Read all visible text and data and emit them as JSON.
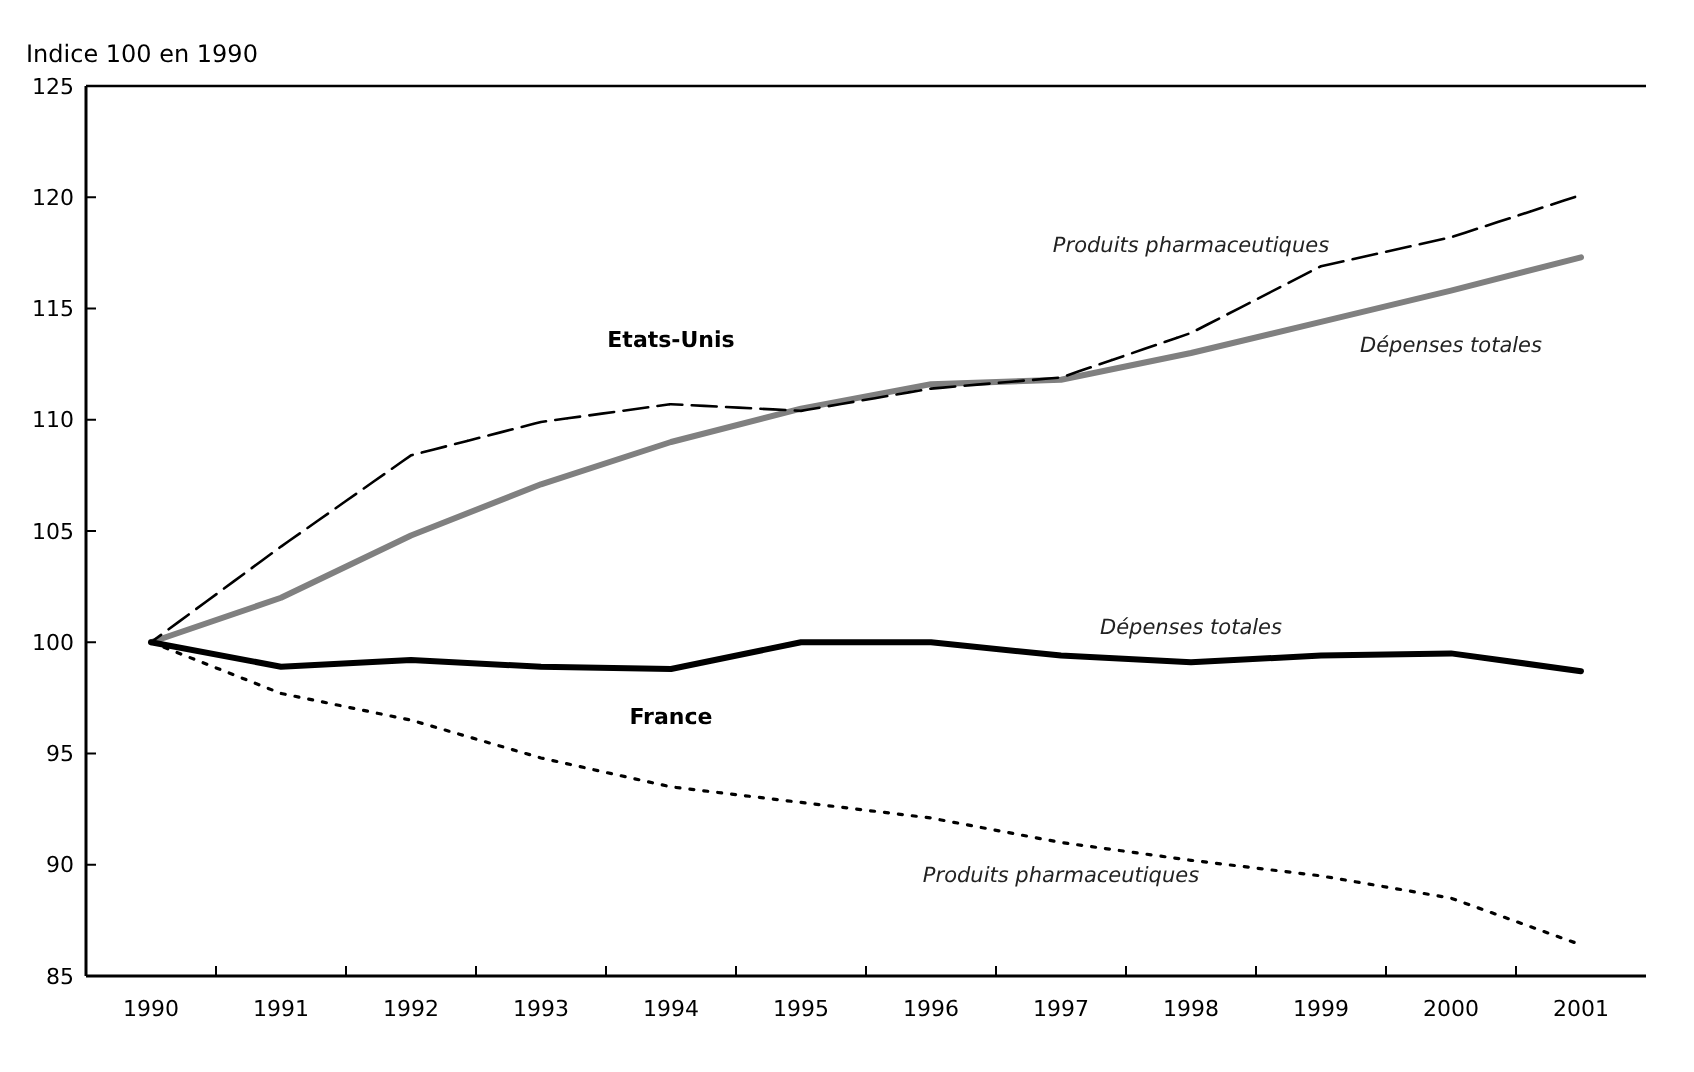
{
  "chart_data": {
    "type": "line",
    "ylabel": "Indice 100 en 1990",
    "categories": [
      "1990",
      "1991",
      "1992",
      "1993",
      "1994",
      "1995",
      "1996",
      "1997",
      "1998",
      "1999",
      "2000",
      "2001"
    ],
    "series": [
      {
        "name": "Dépenses totales",
        "color": "#808080",
        "line_style": "solid",
        "values": [
          100,
          102,
          104.8,
          107.1,
          109,
          110.5,
          111.6,
          111.8,
          113,
          114.4,
          115.8,
          117.3
        ]
      },
      {
        "name": "Produits pharmaceutiques",
        "color": "#000000",
        "line_style": "dashed",
        "values": [
          100,
          104.3,
          108.4,
          109.9,
          110.7,
          110.4,
          111.4,
          111.9,
          113.9,
          116.9,
          118.2,
          120.1
        ]
      },
      {
        "name": "Dépenses totales",
        "color": "#000000",
        "line_style": "solid",
        "values": [
          100,
          98.9,
          99.2,
          98.9,
          98.8,
          100,
          100,
          99.4,
          99.1,
          99.4,
          99.5,
          98.7
        ]
      },
      {
        "name": "Produits pharmaceutiques",
        "color": "#000000",
        "line_style": "dotted",
        "values": [
          100,
          97.7,
          96.5,
          94.8,
          93.5,
          92.8,
          92.1,
          91,
          90.2,
          89.5,
          88.5,
          86.4
        ]
      }
    ],
    "ylim": [
      85,
      125
    ],
    "yticks": [
      85,
      90,
      95,
      100,
      105,
      110,
      115,
      120,
      125
    ],
    "annotations": [
      "Etats-Unis",
      "France"
    ],
    "grid": false,
    "marker": "none"
  }
}
